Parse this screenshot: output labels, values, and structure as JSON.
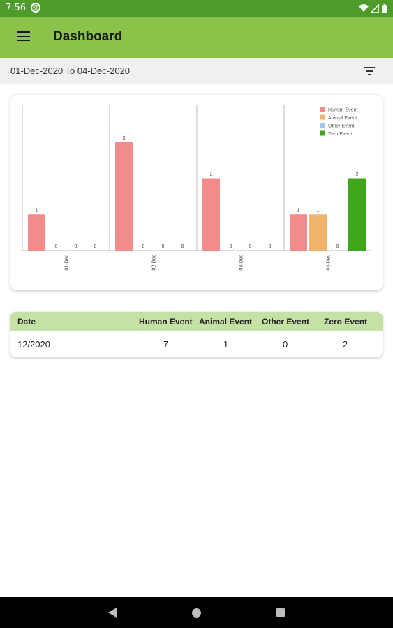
{
  "status_bar": {
    "time": "7:56",
    "app_icon": "@",
    "icons": [
      "wifi-icon",
      "signal-icon",
      "battery-icon"
    ]
  },
  "app_bar": {
    "title": "Dashboard",
    "menu_icon": "menu-icon"
  },
  "date_bar": {
    "range": "01-Dec-2020 To 04-Dec-2020",
    "filter_icon": "filter-icon"
  },
  "chart_data": {
    "type": "bar",
    "categories": [
      "01-Dec",
      "02-Dec",
      "03-Dec",
      "04-Dec"
    ],
    "series": [
      {
        "name": "Human Event",
        "color": "#f28b8b",
        "values": [
          1,
          3,
          2,
          1
        ]
      },
      {
        "name": "Animal Event",
        "color": "#efb56f",
        "values": [
          0,
          0,
          0,
          1
        ]
      },
      {
        "name": "Other Event",
        "color": "#a7c4e8",
        "values": [
          0,
          0,
          0,
          0
        ]
      },
      {
        "name": "Zero Event",
        "color": "#3ea51c",
        "values": [
          0,
          0,
          0,
          2
        ]
      }
    ],
    "ylim": [
      0,
      4
    ],
    "legend": "top-right",
    "grid": "vertical group separators"
  },
  "table": {
    "headers": [
      "Date",
      "Human Event",
      "Animal Event",
      "Other Event",
      "Zero Event"
    ],
    "rows": [
      [
        "12/2020",
        "7",
        "1",
        "0",
        "2"
      ]
    ],
    "header_color": "#c5e1a5"
  },
  "nav_bar": {
    "icons": [
      "back-icon",
      "home-icon",
      "recents-icon"
    ]
  },
  "colors": {
    "status_bar": "#4e9a2a",
    "app_bar": "#8bc34a",
    "date_bar": "#f0f0f0"
  }
}
